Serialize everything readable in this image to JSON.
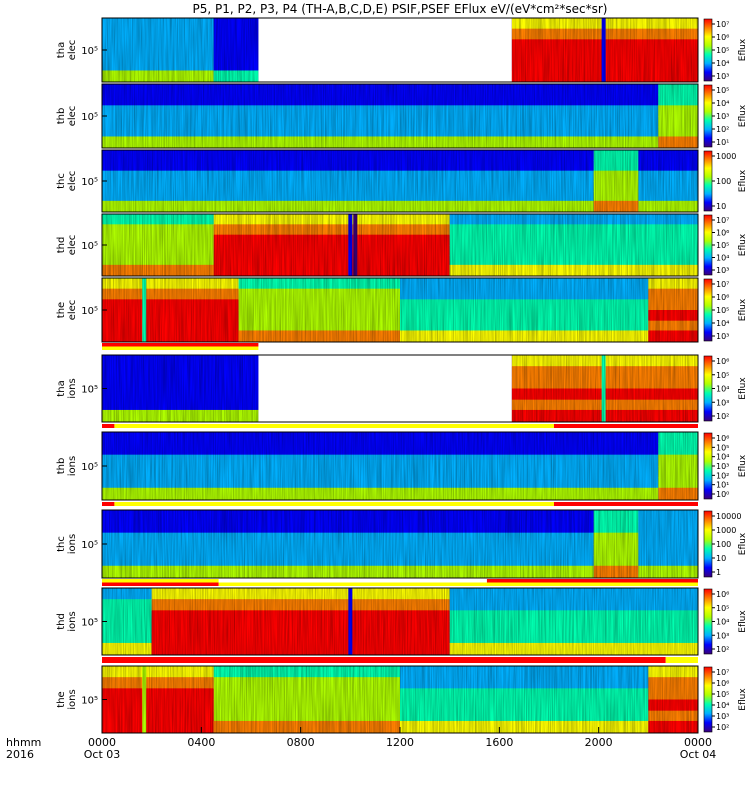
{
  "chart_data": {
    "type": "heatmap",
    "title": "P5, P1, P2, P3, P4  (TH-A,B,C,D,E) PSIF,PSEF EFlux eV/(eV*cm²*sec*sr)",
    "x_axis": {
      "row1_label": "hhmm",
      "row2_label": "2016",
      "range_hours": [
        0,
        24
      ],
      "ticks": [
        {
          "hour": 0,
          "label": "0000",
          "sublabel": "Oct 03"
        },
        {
          "hour": 4,
          "label": "0400",
          "sublabel": ""
        },
        {
          "hour": 8,
          "label": "0800",
          "sublabel": ""
        },
        {
          "hour": 12,
          "label": "1200",
          "sublabel": ""
        },
        {
          "hour": 16,
          "label": "1600",
          "sublabel": ""
        },
        {
          "hour": 20,
          "label": "2000",
          "sublabel": ""
        },
        {
          "hour": 24,
          "label": "0000",
          "sublabel": "Oct 04"
        }
      ]
    },
    "colormap": [
      "#3b007a",
      "#0000ff",
      "#00b0ff",
      "#00ffb0",
      "#b0ff00",
      "#ffff00",
      "#ff8000",
      "#ff0000"
    ],
    "panels": [
      {
        "id": "tha-elec",
        "label": [
          "tha",
          "elec"
        ],
        "ytick": "10⁵",
        "cbar_label": "Eflux",
        "cbar_ticks": [
          "10⁷",
          "10⁶",
          "10⁵",
          "10⁴",
          "10³"
        ],
        "gaps": [
          [
            6.3,
            16.5
          ]
        ],
        "bands": [
          [
            0,
            4.5,
            0.25
          ],
          [
            4.5,
            6.3,
            0.1
          ],
          [
            16.5,
            24,
            0.85
          ]
        ],
        "stripes": [
          [
            20.2,
            0.15
          ]
        ]
      },
      {
        "id": "thb-elec",
        "label": [
          "thb",
          "elec"
        ],
        "ytick": "10⁵",
        "cbar_label": "Eflux",
        "cbar_ticks": [
          "10⁵",
          "10⁴",
          "10³",
          "10²",
          "10¹"
        ],
        "gaps": [],
        "bands": [
          [
            0,
            22.4,
            0.2
          ],
          [
            22.4,
            24,
            0.45
          ]
        ],
        "stripes": []
      },
      {
        "id": "thc-elec",
        "label": [
          "thc",
          "elec"
        ],
        "ytick": "10⁵",
        "cbar_label": "Eflux",
        "cbar_ticks": [
          "1000",
          "100",
          "10"
        ],
        "gaps": [],
        "bands": [
          [
            0,
            19.8,
            0.2
          ],
          [
            19.8,
            21.6,
            0.45
          ],
          [
            21.6,
            24,
            0.2
          ]
        ],
        "stripes": []
      },
      {
        "id": "thd-elec",
        "label": [
          "thd",
          "elec"
        ],
        "ytick": "10⁵",
        "cbar_label": "Eflux",
        "cbar_ticks": [
          "10⁷",
          "10⁶",
          "10⁵",
          "10⁴",
          "10³"
        ],
        "gaps": [],
        "bands": [
          [
            0,
            4.5,
            0.5
          ],
          [
            4.5,
            14,
            0.85
          ],
          [
            14,
            24,
            0.35
          ]
        ],
        "stripes": [
          [
            10,
            0.1
          ],
          [
            10.2,
            0.05
          ]
        ]
      },
      {
        "id": "the-elec",
        "label": [
          "the",
          "elec"
        ],
        "ytick": "10⁵",
        "cbar_label": "Eflux",
        "cbar_ticks": [
          "10⁷",
          "10⁶",
          "10⁵",
          "10⁴",
          "10³"
        ],
        "gaps": [],
        "bands": [
          [
            0,
            5.5,
            0.85
          ],
          [
            5.5,
            12,
            0.5
          ],
          [
            12,
            22,
            0.3
          ],
          [
            22,
            24,
            0.75
          ]
        ],
        "stripes": [
          [
            1.7,
            0.4
          ]
        ]
      },
      {
        "id": "tha-ions",
        "label": [
          "tha",
          "ions"
        ],
        "ytick": "10⁵",
        "cbar_label": "Eflux",
        "cbar_ticks": [
          "10⁶",
          "10⁵",
          "10⁴",
          "10³",
          "10²"
        ],
        "gaps": [
          [
            6.3,
            16.5
          ]
        ],
        "bands": [
          [
            0,
            6.3,
            0.15
          ],
          [
            16.5,
            24,
            0.75
          ]
        ],
        "stripes": [
          [
            20.2,
            0.4
          ]
        ]
      },
      {
        "id": "thb-ions",
        "label": [
          "thb",
          "ions"
        ],
        "ytick": "10⁵",
        "cbar_label": "Eflux",
        "cbar_ticks": [
          "10⁶",
          "10⁵",
          "10⁴",
          "10³",
          "10²",
          "10¹",
          "10⁰"
        ],
        "gaps": [],
        "bands": [
          [
            0,
            22.4,
            0.2
          ],
          [
            22.4,
            24,
            0.45
          ]
        ],
        "stripes": []
      },
      {
        "id": "thc-ions",
        "label": [
          "thc",
          "ions"
        ],
        "ytick": "10⁵",
        "cbar_label": "Eflux",
        "cbar_ticks": [
          "10000",
          "1000",
          "100",
          "10",
          "1"
        ],
        "gaps": [],
        "bands": [
          [
            0,
            19.8,
            0.18
          ],
          [
            19.8,
            21.6,
            0.45
          ],
          [
            21.6,
            24,
            0.25
          ]
        ],
        "stripes": []
      },
      {
        "id": "thd-ions",
        "label": [
          "thd",
          "ions"
        ],
        "ytick": "10⁵",
        "cbar_label": "Eflux",
        "cbar_ticks": [
          "10⁶",
          "10⁵",
          "10⁴",
          "10³",
          "10²"
        ],
        "gaps": [],
        "bands": [
          [
            0,
            2,
            0.35
          ],
          [
            2,
            14,
            0.8
          ],
          [
            14,
            24,
            0.3
          ]
        ],
        "stripes": [
          [
            10,
            0.1
          ]
        ]
      },
      {
        "id": "the-ions",
        "label": [
          "the",
          "ions"
        ],
        "ytick": "10⁵",
        "cbar_label": "Eflux",
        "cbar_ticks": [
          "10⁷",
          "10⁶",
          "10⁵",
          "10⁴",
          "10³",
          "10²"
        ],
        "gaps": [],
        "bands": [
          [
            0,
            4.5,
            0.85
          ],
          [
            4.5,
            12,
            0.5
          ],
          [
            12,
            22,
            0.3
          ],
          [
            22,
            24,
            0.75
          ]
        ],
        "stripes": [
          [
            1.7,
            0.5
          ]
        ]
      }
    ],
    "mode_bars": [
      {
        "after_panel": "the-elec",
        "top": [
          [
            0,
            6.3,
            "#ff0000"
          ],
          [
            6.3,
            24,
            "#ffffff"
          ]
        ],
        "bottom": [
          [
            0,
            6.3,
            "#ffff00"
          ],
          [
            6.3,
            24,
            "#ffffff"
          ]
        ]
      },
      {
        "after_panel": "tha-ions",
        "top": [
          [
            0,
            0.5,
            "#ff0000"
          ],
          [
            0.5,
            18.2,
            "#ffff00"
          ],
          [
            18.2,
            24,
            "#ff0000"
          ]
        ],
        "bottom": []
      },
      {
        "after_panel": "thb-ions",
        "top": [
          [
            0,
            0.5,
            "#ff0000"
          ],
          [
            0.5,
            18.2,
            "#ffff00"
          ],
          [
            18.2,
            24,
            "#ff0000"
          ]
        ],
        "bottom": []
      },
      {
        "after_panel": "thc-ions",
        "top": [
          [
            0,
            4.7,
            "#ffff00"
          ],
          [
            4.7,
            15.5,
            "#ffffff"
          ],
          [
            15.5,
            24,
            "#ff0000"
          ]
        ],
        "bottom": [
          [
            0,
            4.7,
            "#ff0000"
          ],
          [
            4.7,
            24,
            "#ffff00"
          ]
        ]
      },
      {
        "after_panel": "thd-ions",
        "top": [
          [
            0,
            22.7,
            "#ff0000"
          ],
          [
            22.7,
            24,
            "#ffff00"
          ]
        ],
        "bottom": []
      }
    ]
  }
}
